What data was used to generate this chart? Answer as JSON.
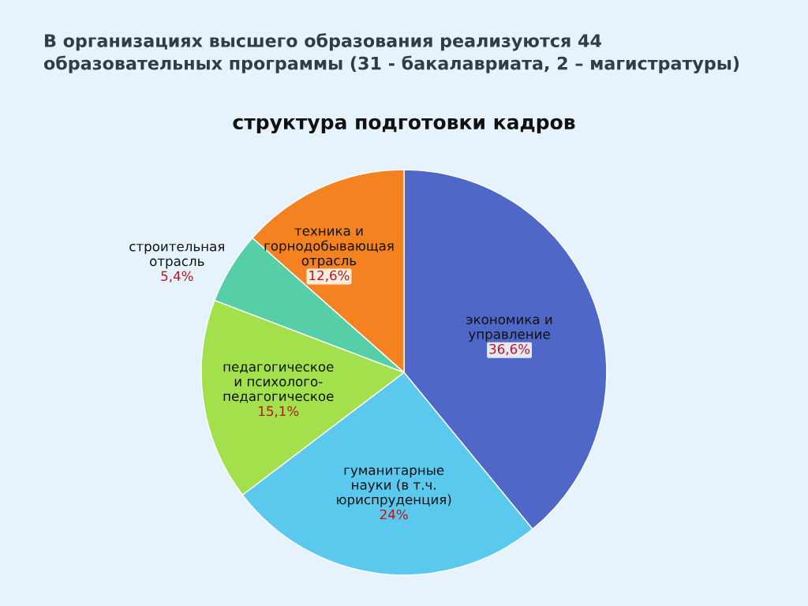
{
  "chart_data": {
    "type": "pie",
    "title": "В организациях высшего образования реализуются 44\nобразовательных программы (31 - бакалавриата, 2 – магистратуры)",
    "subtitle": "структура подготовки кадров",
    "categories": [
      "экономика и\nуправление",
      "гуманитарные\nнауки (в т.ч.\nюриспруденция)",
      "педагогическое\nи психолого-\nпедагогическое",
      "строительная\nотрасль",
      "техника и\nгорнодобывающая\nотрасль"
    ],
    "values": [
      36.6,
      24,
      15.1,
      5.4,
      12.6
    ],
    "value_labels": [
      "36,6%",
      "24%",
      "15,1%",
      "5,4%",
      "12,6%"
    ],
    "colors": [
      "#4f67c6",
      "#5bc8ee",
      "#a2e14c",
      "#56cfa9",
      "#f58220"
    ],
    "legend": false
  }
}
